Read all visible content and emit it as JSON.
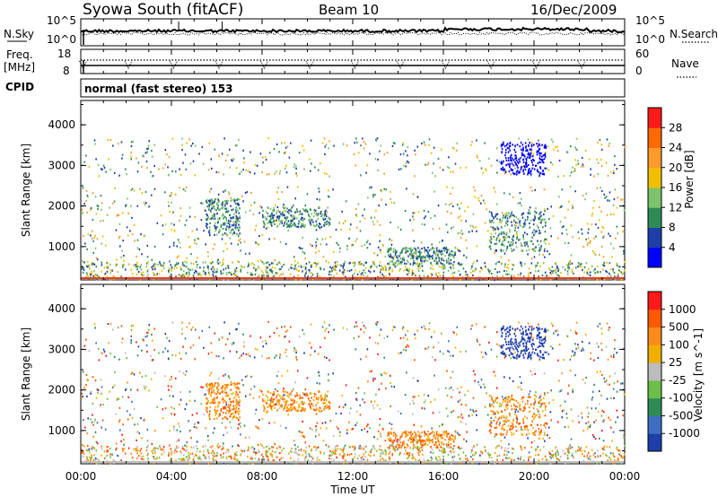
{
  "header": {
    "title": "Syowa South (fitACF)",
    "beam": "Beam 10",
    "date": "16/Dec/2009"
  },
  "nsky_panel": {
    "left_label": "N.Sky",
    "right_label": "N.Search",
    "y_ticks": [
      "10^5",
      "10^0"
    ],
    "y_ticks_right": [
      "10^5",
      "10^0"
    ]
  },
  "freq_panel": {
    "left_label_1": "Freq.",
    "left_label_2": "[MHz]",
    "right_label": "Nave",
    "y_ticks_left": [
      "18",
      "8"
    ],
    "y_ticks_right": [
      "60",
      "0"
    ]
  },
  "cpid": {
    "label": "CPID",
    "mode": "normal (fast stereo) 153"
  },
  "axes": {
    "x_ticks": [
      "00:00",
      "04:00",
      "08:00",
      "12:00",
      "16:00",
      "20:00",
      "00:00"
    ],
    "x_label": "Time UT",
    "y_label": "Slant Range [km]",
    "y_ticks": [
      "1000",
      "2000",
      "3000",
      "4000"
    ]
  },
  "chart_data": [
    {
      "type": "heatmap",
      "name": "power",
      "x_range_hours": [
        0,
        24
      ],
      "y_range_km": [
        180,
        4600
      ],
      "colorbar": {
        "label": "Power [dB]",
        "ticks": [
          "4",
          "8",
          "12",
          "16",
          "20",
          "24",
          "28"
        ],
        "colors": [
          "#0000ff",
          "#1e3fa8",
          "#2e8b57",
          "#7cc36b",
          "#f0c000",
          "#ff9a2e",
          "#ff6a00",
          "#ff1a1a"
        ]
      },
      "features_km_by_hour": [
        {
          "hours": [
            5.5,
            7.0
          ],
          "range": [
            1300,
            2200
          ]
        },
        {
          "hours": [
            8.0,
            11.0
          ],
          "range": [
            1500,
            2000
          ]
        },
        {
          "hours": [
            13.5,
            16.5
          ],
          "range": [
            600,
            1000
          ]
        },
        {
          "hours": [
            18.0,
            20.5
          ],
          "range": [
            900,
            1900
          ]
        },
        {
          "hours": [
            18.5,
            20.5
          ],
          "range": [
            2800,
            3600
          ]
        }
      ]
    },
    {
      "type": "heatmap",
      "name": "velocity",
      "x_range_hours": [
        0,
        24
      ],
      "y_range_km": [
        180,
        4600
      ],
      "colorbar": {
        "label": "Velocity [m s^-1]",
        "ticks": [
          "1000",
          "500",
          "100",
          "25",
          "-25",
          "-100",
          "-500",
          "-1000"
        ],
        "colors": [
          "#1e3fa8",
          "#3d6ec2",
          "#2e8b57",
          "#6cc04a",
          "#bdbdbd",
          "#f0b000",
          "#ff8c1a",
          "#ff5a00",
          "#ff1a1a"
        ]
      }
    }
  ]
}
